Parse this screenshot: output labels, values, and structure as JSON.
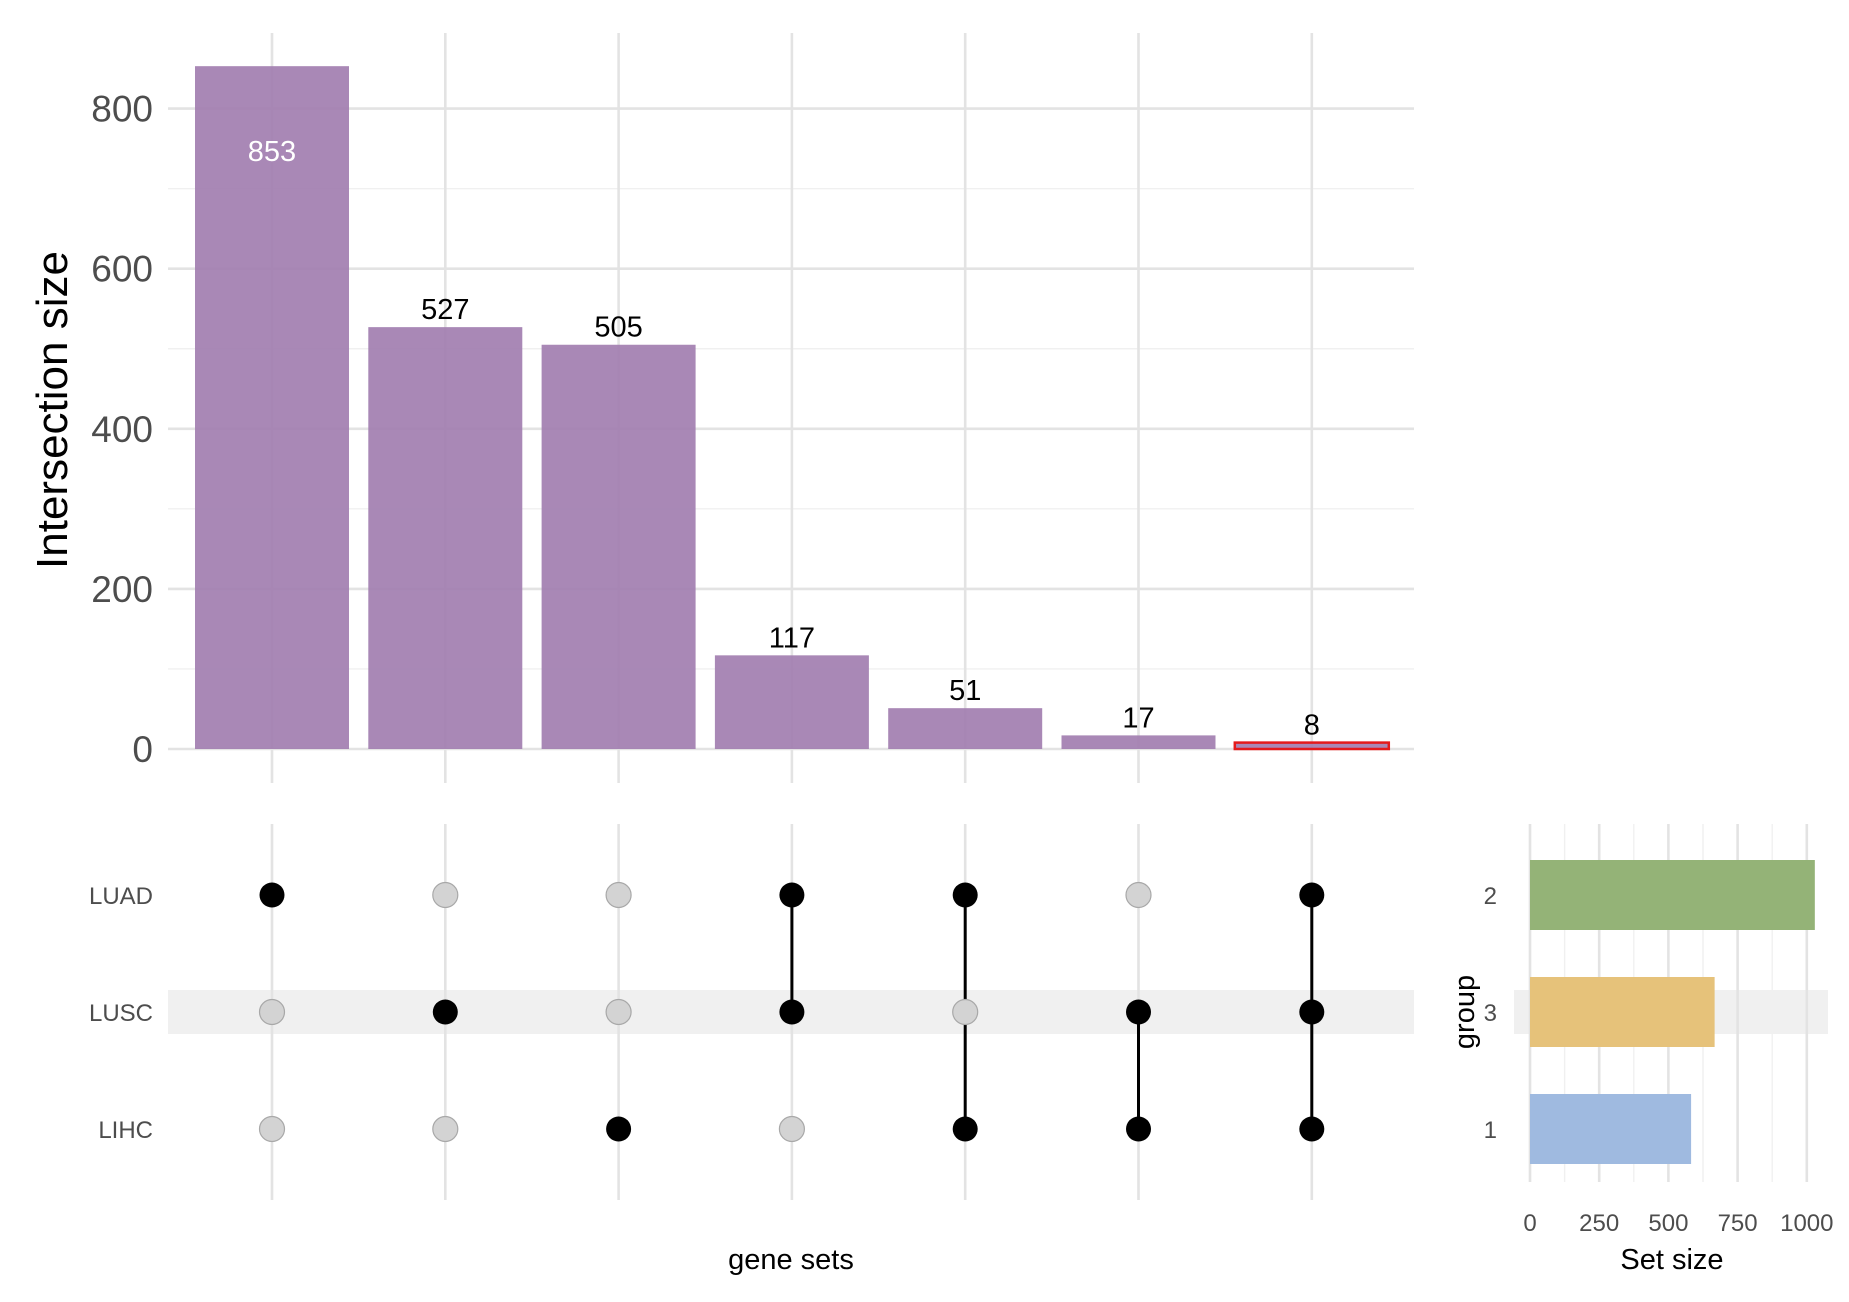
{
  "chart_data": {
    "type": "upset",
    "intersection_bars": {
      "ylabel": "Intersection size",
      "ylim": [
        0,
        880
      ],
      "yticks": [
        0,
        200,
        400,
        600,
        800
      ],
      "values": [
        853,
        527,
        505,
        117,
        51,
        17,
        8
      ],
      "labels": [
        "853",
        "527",
        "505",
        "117",
        "51",
        "17",
        "8"
      ],
      "bar_color": "#a27eb0",
      "highlight_index": 6,
      "highlight_outline": "#e41a1c"
    },
    "matrix": {
      "xlabel": "gene sets",
      "sets": [
        "LUAD",
        "LUSC",
        "LIHC"
      ],
      "combinations": [
        [
          "LUAD"
        ],
        [
          "LUSC"
        ],
        [
          "LIHC"
        ],
        [
          "LUAD",
          "LUSC"
        ],
        [
          "LUAD",
          "LIHC"
        ],
        [
          "LUSC",
          "LIHC"
        ],
        [
          "LUAD",
          "LUSC",
          "LIHC"
        ]
      ],
      "active_dot_color": "#000000",
      "inactive_dot_color": "#d3d3d3",
      "stripe_color": "#f0f0f0"
    },
    "set_size": {
      "xlabel": "Set size",
      "ylabel": "group",
      "xticks": [
        0,
        250,
        500,
        750,
        1000
      ],
      "xlim": [
        0,
        1080
      ],
      "groups": [
        "2",
        "3",
        "1"
      ],
      "values": [
        1029,
        667,
        582
      ],
      "colors": [
        "#94b377",
        "#e6c27a",
        "#9fbae0"
      ]
    }
  }
}
